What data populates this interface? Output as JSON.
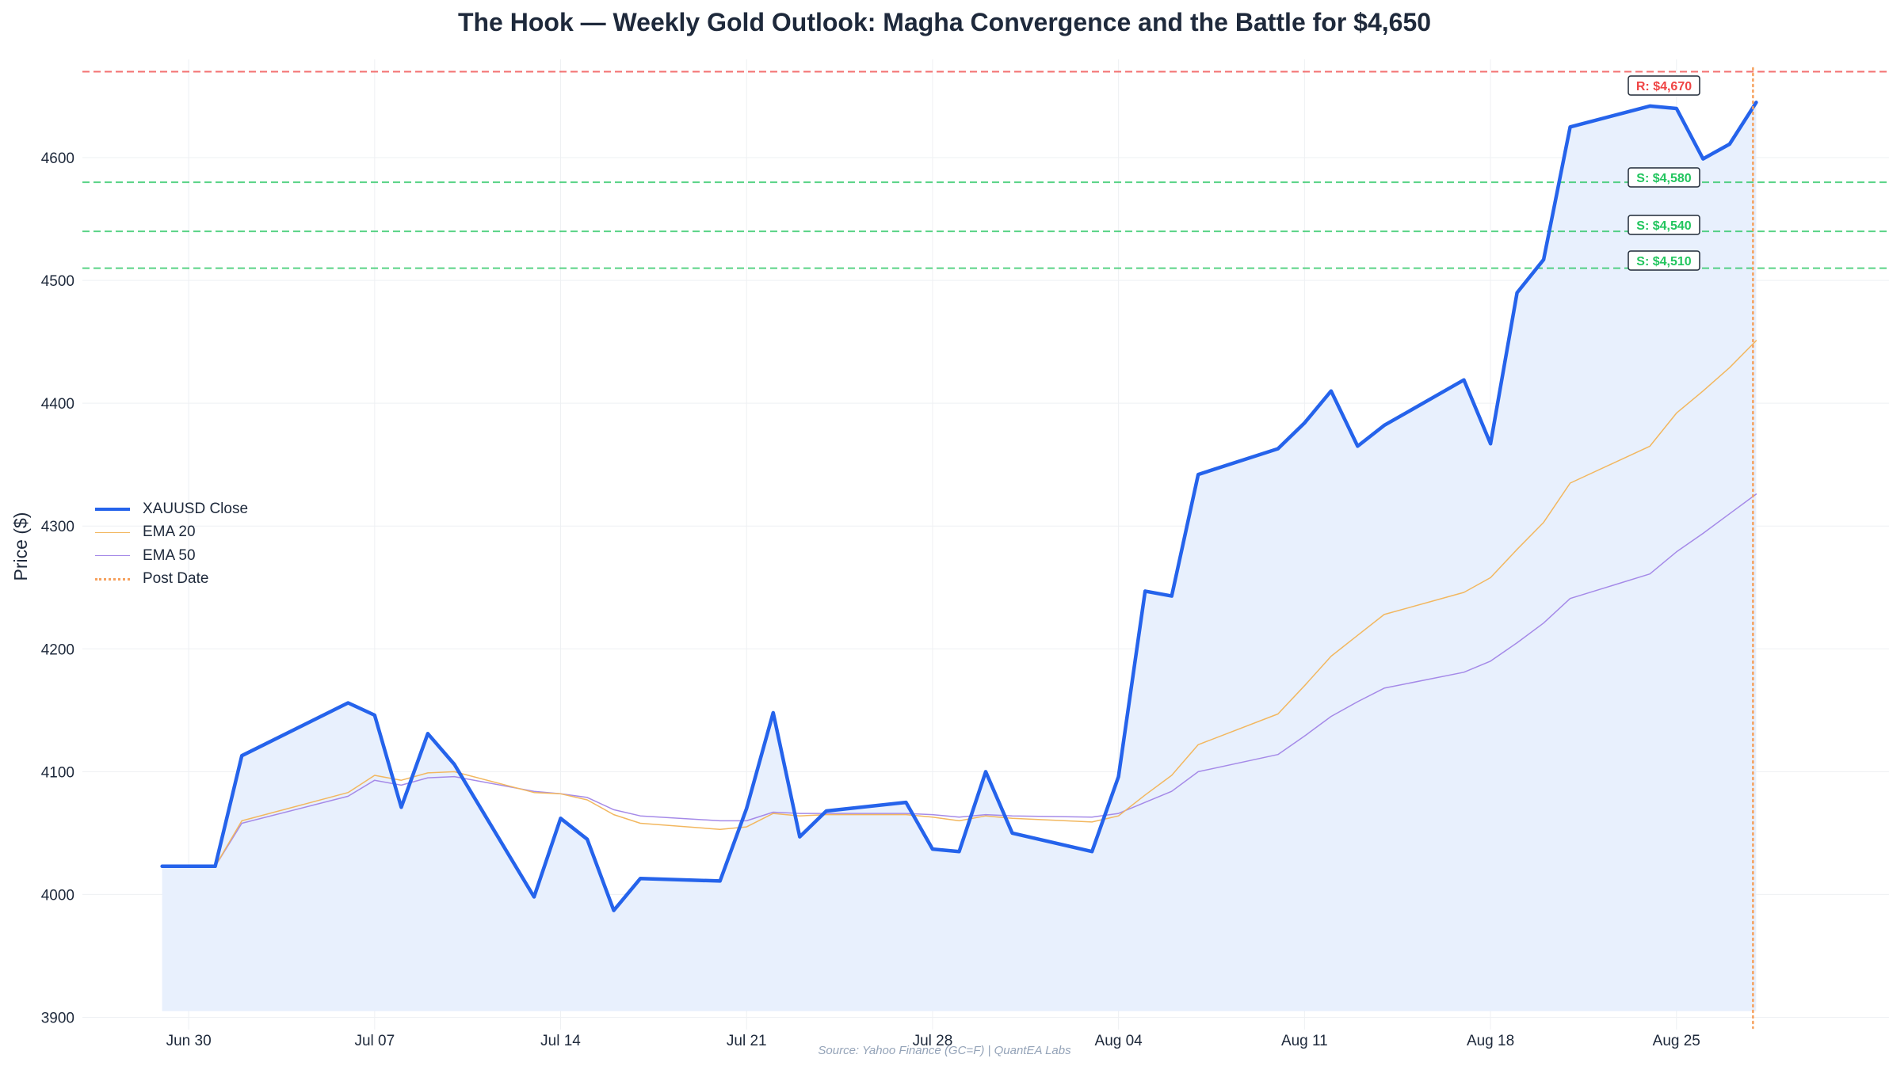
{
  "chart_data": {
    "type": "line",
    "title": "The Hook — Weekly Gold Outlook: Magha Convergence and the Battle for $4,650",
    "ylabel": "Price ($)",
    "xlabel": "",
    "ylim": [
      3890,
      4680
    ],
    "yticks": [
      3900,
      4000,
      4100,
      4200,
      4300,
      4400,
      4500,
      4600
    ],
    "xticks": [
      {
        "date": "2025-06-30",
        "label": "Jun 30"
      },
      {
        "date": "2025-07-07",
        "label": "Jul 07"
      },
      {
        "date": "2025-07-14",
        "label": "Jul 14"
      },
      {
        "date": "2025-07-21",
        "label": "Jul 21"
      },
      {
        "date": "2025-07-28",
        "label": "Jul 28"
      },
      {
        "date": "2025-08-04",
        "label": "Aug 04"
      },
      {
        "date": "2025-08-11",
        "label": "Aug 11"
      },
      {
        "date": "2025-08-18",
        "label": "Aug 18"
      },
      {
        "date": "2025-08-25",
        "label": "Aug 25"
      }
    ],
    "xrange": [
      "2025-06-26",
      "2025-09-02"
    ],
    "grid": true,
    "legend_position": "center-left",
    "dates": [
      "2025-06-29",
      "2025-06-30",
      "2025-07-01",
      "2025-07-02",
      "2025-07-06",
      "2025-07-07",
      "2025-07-08",
      "2025-07-09",
      "2025-07-10",
      "2025-07-13",
      "2025-07-14",
      "2025-07-15",
      "2025-07-16",
      "2025-07-17",
      "2025-07-20",
      "2025-07-21",
      "2025-07-22",
      "2025-07-23",
      "2025-07-24",
      "2025-07-27",
      "2025-07-28",
      "2025-07-29",
      "2025-07-30",
      "2025-07-31",
      "2025-08-03",
      "2025-08-04",
      "2025-08-05",
      "2025-08-06",
      "2025-08-07",
      "2025-08-10",
      "2025-08-11",
      "2025-08-12",
      "2025-08-13",
      "2025-08-14",
      "2025-08-17",
      "2025-08-18",
      "2025-08-19",
      "2025-08-20",
      "2025-08-21",
      "2025-08-24",
      "2025-08-25",
      "2025-08-26",
      "2025-08-27",
      "2025-08-28"
    ],
    "series": [
      {
        "name": "XAUUSD Close",
        "color": "#2563eb",
        "values": [
          4023,
          4023,
          4023,
          4113,
          4156,
          4146,
          4071,
          4131,
          4106,
          3998,
          4062,
          4045,
          3987,
          4013,
          4011,
          4070,
          4148,
          4047,
          4068,
          4075,
          4037,
          4035,
          4100,
          4050,
          4035,
          4096,
          4247,
          4243,
          4342,
          4363,
          4384,
          4410,
          4365,
          4382,
          4419,
          4367,
          4490,
          4517,
          4625,
          4642,
          4640,
          4599,
          4611,
          4645
        ]
      },
      {
        "name": "EMA 20",
        "color": "#f2b75f",
        "values": [
          4023,
          4023,
          4023,
          4060,
          4083,
          4097,
          4093,
          4099,
          4100,
          4083,
          4082,
          4077,
          4065,
          4058,
          4053,
          4055,
          4066,
          4064,
          4065,
          4065,
          4063,
          4060,
          4064,
          4062,
          4059,
          4064,
          4081,
          4097,
          4122,
          4147,
          4170,
          4194,
          4211,
          4228,
          4246,
          4258,
          4281,
          4303,
          4335,
          4365,
          4392,
          4410,
          4429,
          4451
        ]
      },
      {
        "name": "EMA 50",
        "color": "#a58ae8",
        "values": [
          4023,
          4023,
          4023,
          4058,
          4080,
          4093,
          4089,
          4095,
          4096,
          4084,
          4082,
          4079,
          4069,
          4064,
          4060,
          4060,
          4067,
          4066,
          4066,
          4066,
          4065,
          4063,
          4065,
          4064,
          4063,
          4066,
          4075,
          4084,
          4100,
          4114,
          4129,
          4145,
          4157,
          4168,
          4181,
          4190,
          4205,
          4221,
          4241,
          4261,
          4279,
          4294,
          4310,
          4326
        ]
      }
    ],
    "post_date": {
      "name": "Post Date",
      "date": "2025-08-28",
      "color": "#f6a05c"
    },
    "levels": [
      {
        "value": 4670,
        "label": "R: $4,670",
        "kind": "resistance",
        "color": "#ef4444"
      },
      {
        "value": 4580,
        "label": "S: $4,580",
        "kind": "support",
        "color": "#22c55e"
      },
      {
        "value": 4540,
        "label": "S: $4,540",
        "kind": "support",
        "color": "#22c55e"
      },
      {
        "value": 4510,
        "label": "S: $4,510",
        "kind": "support",
        "color": "#22c55e"
      }
    ],
    "fill_color": "#e8f0fd"
  },
  "source": "Source: Yahoo Finance (GC=F) | QuantEA Labs"
}
